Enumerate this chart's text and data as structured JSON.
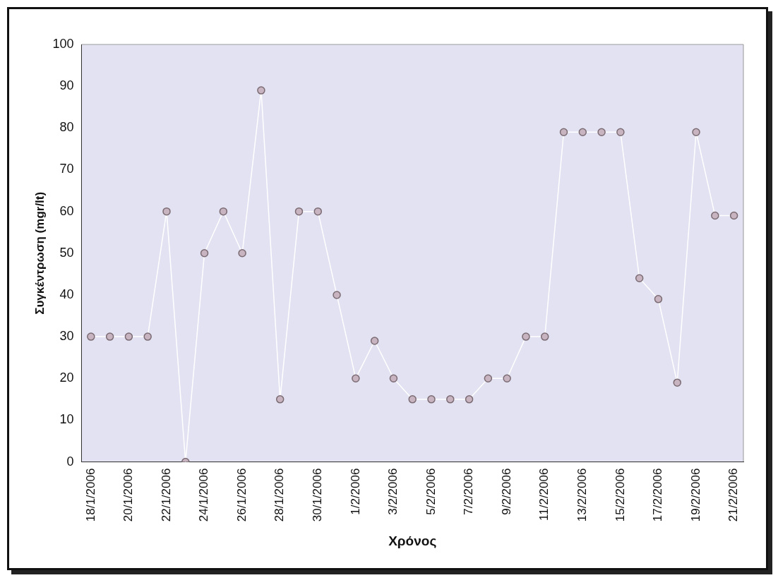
{
  "chart_data": {
    "type": "line",
    "xlabel": "Χρόνος",
    "ylabel": "Συγκέντρωση (mgr/lt)",
    "categories": [
      "18/1/2006",
      null,
      "20/1/2006",
      null,
      "22/1/2006",
      null,
      "24/1/2006",
      null,
      "26/1/2006",
      null,
      "28/1/2006",
      null,
      "30/1/2006",
      null,
      "1/2/2006",
      null,
      "3/2/2006",
      null,
      "5/2/2006",
      null,
      "7/2/2006",
      null,
      "9/2/2006",
      null,
      "11/2/2006",
      null,
      "13/2/2006",
      null,
      "15/2/2006",
      null,
      "17/2/2006",
      null,
      "19/2/2006",
      null,
      "21/2/2006"
    ],
    "series": [
      {
        "color": "#ffffff",
        "values": [
          30,
          30,
          30,
          30,
          60,
          0,
          50,
          60,
          50,
          89,
          15,
          60,
          60,
          40,
          20,
          29,
          20,
          15,
          15,
          15,
          15,
          20,
          20,
          30,
          30,
          79,
          79,
          79,
          79,
          44,
          39,
          19,
          79,
          59,
          59
        ]
      }
    ],
    "ylim": [
      0,
      100
    ],
    "yticks": [
      0,
      10,
      20,
      30,
      40,
      50,
      60,
      70,
      80,
      90,
      100
    ],
    "grid": false,
    "legend": false,
    "marker": "circle",
    "line_style": "solid"
  }
}
